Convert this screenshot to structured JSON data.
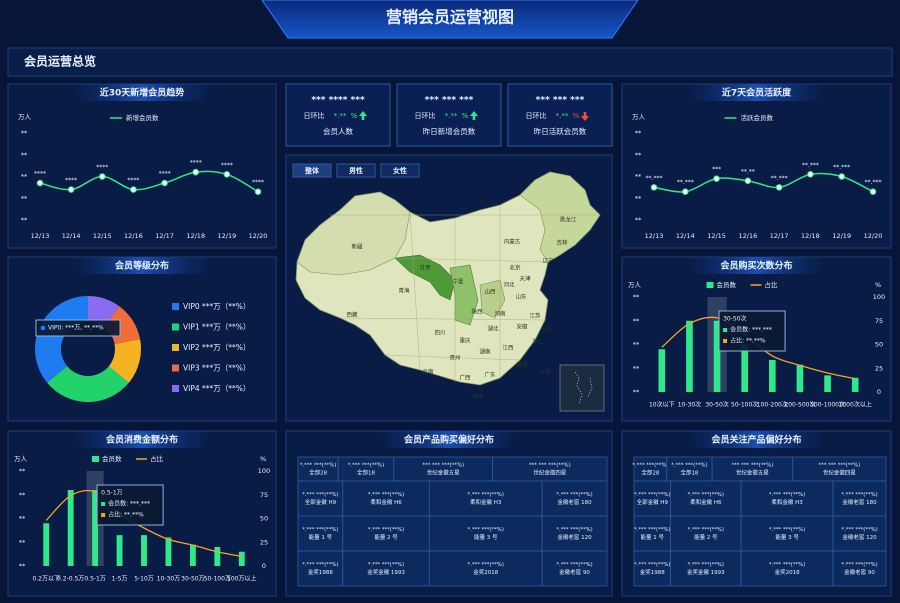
{
  "title": "营销会员运营视图",
  "section_title": "会员运营总览",
  "kpis": [
    {
      "value": "*** **** ***",
      "change_label": "日环比",
      "change": "*.**",
      "change_unit": "%",
      "direction": "up",
      "label": "会员人数"
    },
    {
      "value": "*** *** ***",
      "change_label": "日环比",
      "change": "*.**",
      "change_unit": "%",
      "direction": "up",
      "label": "昨日新增会员数"
    },
    {
      "value": "*** *** ***",
      "change_label": "日环比",
      "change": "*.**",
      "change_unit": "%",
      "direction": "down",
      "label": "昨日活跃会员数"
    }
  ],
  "map": {
    "tabs": [
      "整体",
      "男性",
      "女性"
    ],
    "provinces": [
      "新疆",
      "西藏",
      "青海",
      "甘肃",
      "宁夏",
      "内蒙古",
      "黑龙江",
      "吉林",
      "辽宁",
      "北京",
      "天津",
      "河北",
      "山西",
      "陕西",
      "山东",
      "河南",
      "江苏",
      "安徽",
      "湖北",
      "四川",
      "重庆",
      "贵州",
      "湖南",
      "江西",
      "浙江",
      "上海",
      "福建",
      "云南",
      "广西",
      "广东",
      "台湾",
      "海南"
    ]
  },
  "chart_data": [
    {
      "type": "line",
      "title": "近30天新增会员趋势",
      "y_unit": "万人",
      "categories": [
        "12/13",
        "12/14",
        "12/15",
        "12/16",
        "12/17",
        "12/18",
        "12/19",
        "12/20"
      ],
      "series": [
        {
          "name": "新增会员数",
          "color": "#2ee88a",
          "values": [
            1.7,
            1.4,
            2.0,
            1.4,
            1.7,
            2.2,
            2.1,
            1.3
          ],
          "value_labels": [
            "****",
            "****",
            "****",
            "****",
            "****",
            "****",
            "****",
            "****"
          ]
        }
      ],
      "ylim": [
        0,
        4
      ],
      "yticks": [
        {
          "value": 0,
          "label": "**"
        },
        {
          "value": 1,
          "label": "**"
        },
        {
          "value": 2,
          "label": "**"
        },
        {
          "value": 3,
          "label": "**"
        },
        {
          "value": 4,
          "label": "**"
        }
      ]
    },
    {
      "type": "line",
      "title": "近7天会员活跃度",
      "y_unit": "万人",
      "categories": [
        "12/13",
        "12/14",
        "12/15",
        "12/16",
        "12/17",
        "12/18",
        "12/19",
        "12/20"
      ],
      "series": [
        {
          "name": "活跃会员数",
          "color": "#2ee88a",
          "values": [
            1.5,
            1.3,
            1.9,
            1.8,
            1.5,
            2.1,
            2.0,
            1.3
          ],
          "value_labels": [
            "**.***",
            "**.***",
            "***",
            "**.**",
            "**.***",
            "**.***",
            "**.***",
            "**.***"
          ]
        }
      ],
      "ylim": [
        0,
        4
      ],
      "yticks": [
        {
          "value": 0,
          "label": "**"
        },
        {
          "value": 1,
          "label": "**"
        },
        {
          "value": 2,
          "label": "**"
        },
        {
          "value": 3,
          "label": "**"
        },
        {
          "value": 4,
          "label": "**"
        }
      ]
    },
    {
      "type": "pie",
      "title": "会员等级分布",
      "legend_labels": [
        "VIP0 ***万（**%）",
        "VIP1 ***万（**%）",
        "VIP2 ***万（**%）",
        "VIP3 ***万（**%）",
        "VIP4 ***万（**%）"
      ],
      "values": [
        36,
        28,
        14,
        12,
        10
      ],
      "colors": [
        "#1e7bf0",
        "#22d36b",
        "#f5b324",
        "#f26b3a",
        "#8a6cf0"
      ],
      "tooltip": "VIP0: ***万, **.**%"
    },
    {
      "type": "combo",
      "title": "会员购买次数分布",
      "y_unit": "万人",
      "y2_unit": "%",
      "categories": [
        "10次以下",
        "10-30次",
        "30-50次",
        "50-100次",
        "100-200次",
        "200-500次",
        "500-1000次",
        "1000次以上"
      ],
      "series": [
        {
          "name": "会员数",
          "type": "bar",
          "color": "#2ee88a",
          "values": [
            1.8,
            3.0,
            3.0,
            2.0,
            1.35,
            1.15,
            0.7,
            0.6
          ]
        },
        {
          "name": "占比",
          "type": "line",
          "axis": "y2",
          "color": "#f5a623",
          "values": [
            47,
            72,
            78,
            60,
            38,
            28,
            20,
            14
          ]
        }
      ],
      "ylim": [
        0,
        4
      ],
      "yticks": [
        {
          "value": 0,
          "label": "**"
        },
        {
          "value": 1,
          "label": "**"
        },
        {
          "value": 2,
          "label": "**"
        },
        {
          "value": 3,
          "label": "**"
        },
        {
          "value": 4,
          "label": "**"
        }
      ],
      "y2lim": [
        0,
        100
      ],
      "y2ticks": [
        0,
        25,
        50,
        75,
        100
      ],
      "tooltip": {
        "title": "30-50次",
        "lines": [
          "会员数: ***.***",
          "占比: **.**%"
        ]
      }
    },
    {
      "type": "combo",
      "title": "会员消费金额分布",
      "y_unit": "万人",
      "y2_unit": "%",
      "categories": [
        "0.2万以下",
        "0.2-0.5万",
        "0.5-1万",
        "1-5万",
        "5-10万",
        "10-30万",
        "30-50万",
        "50-100万",
        "100万以上"
      ],
      "series": [
        {
          "name": "会员数",
          "type": "bar",
          "color": "#2ee88a",
          "values": [
            1.8,
            3.2,
            3.2,
            1.3,
            1.3,
            1.2,
            0.9,
            0.8,
            0.6
          ]
        },
        {
          "name": "占比",
          "type": "line",
          "axis": "y2",
          "color": "#f5a623",
          "values": [
            48,
            74,
            78,
            55,
            40,
            28,
            22,
            15,
            10
          ]
        }
      ],
      "ylim": [
        0,
        4
      ],
      "yticks": [
        {
          "value": 0,
          "label": "**"
        },
        {
          "value": 1,
          "label": "**"
        },
        {
          "value": 2,
          "label": "**"
        },
        {
          "value": 3,
          "label": "**"
        },
        {
          "value": 4,
          "label": "**"
        }
      ],
      "y2lim": [
        0,
        100
      ],
      "y2ticks": [
        0,
        25,
        50,
        75,
        100
      ],
      "tooltip": {
        "title": "0.5-1万",
        "lines": [
          "会员数: ***.***",
          "占比: **.**%"
        ]
      }
    }
  ],
  "treemaps": [
    {
      "title": "会员产品购买偏好分布",
      "cells": [
        {
          "value": "*.*** ***(**%)",
          "name": "全部28"
        },
        {
          "value": "*.*** ***(**%)",
          "name": "全部18"
        },
        {
          "value": "*** *** ***(**%)",
          "name": "世纪金徽五星"
        },
        {
          "value": "*** *** ***(**%)",
          "name": "世纪金徽四星"
        },
        {
          "value": "*.*** ***(**%)",
          "name": "全部金徽 H9"
        },
        {
          "value": "*.*** ***(**%)",
          "name": "柔和金徽 H6"
        },
        {
          "value": "*.*** ***(**%)",
          "name": "柔和金徽 H3"
        },
        {
          "value": "*.*** ***(**%)",
          "name": "金徽老窖 180"
        },
        {
          "value": "*.*** ***(**%)",
          "name": "能量 1 号"
        },
        {
          "value": "*.*** ***(**%)",
          "name": "能量 2 号"
        },
        {
          "value": "*.*** ***(**%)",
          "name": "能量 3 号"
        },
        {
          "value": "*.*** ***(**%)",
          "name": "金徽老窖 120"
        },
        {
          "value": "*.*** ***(**%)",
          "name": "金奖1988"
        },
        {
          "value": "*.*** ***(**%)",
          "name": "金奖金徽 1993"
        },
        {
          "value": "*.*** ***(**%)",
          "name": "金奖2018"
        },
        {
          "value": "*.*** ***(**%)",
          "name": "金徽老窖 90"
        }
      ]
    },
    {
      "title": "会员关注产品偏好分布",
      "cells": [
        {
          "value": "*.*** ***(**%)",
          "name": "全部28"
        },
        {
          "value": "*.*** ***(**%)",
          "name": "全部18"
        },
        {
          "value": "*** *** ***(**%)",
          "name": "世纪金徽五星"
        },
        {
          "value": "*** *** ***(**%)",
          "name": "世纪金徽四星"
        },
        {
          "value": "*.*** ***(**%)",
          "name": "全部金徽 H9"
        },
        {
          "value": "*.*** ***(**%)",
          "name": "柔和金徽 H6"
        },
        {
          "value": "*.*** ***(**%)",
          "name": "柔和金徽 H3"
        },
        {
          "value": "*.*** ***(**%)",
          "name": "金徽老窖 180"
        },
        {
          "value": "*.*** ***(**%)",
          "name": "能量 1 号"
        },
        {
          "value": "*.*** ***(**%)",
          "name": "能量 2 号"
        },
        {
          "value": "*.*** ***(**%)",
          "name": "能量 3 号"
        },
        {
          "value": "*.*** ***(**%)",
          "name": "金徽老窖 120"
        },
        {
          "value": "*.*** ***(**%)",
          "name": "金奖1988"
        },
        {
          "value": "*.*** ***(**%)",
          "name": "金奖金徽 1993"
        },
        {
          "value": "*.*** ***(**%)",
          "name": "金奖2018"
        },
        {
          "value": "*.*** ***(**%)",
          "name": "金徽老窖 90"
        }
      ]
    }
  ]
}
